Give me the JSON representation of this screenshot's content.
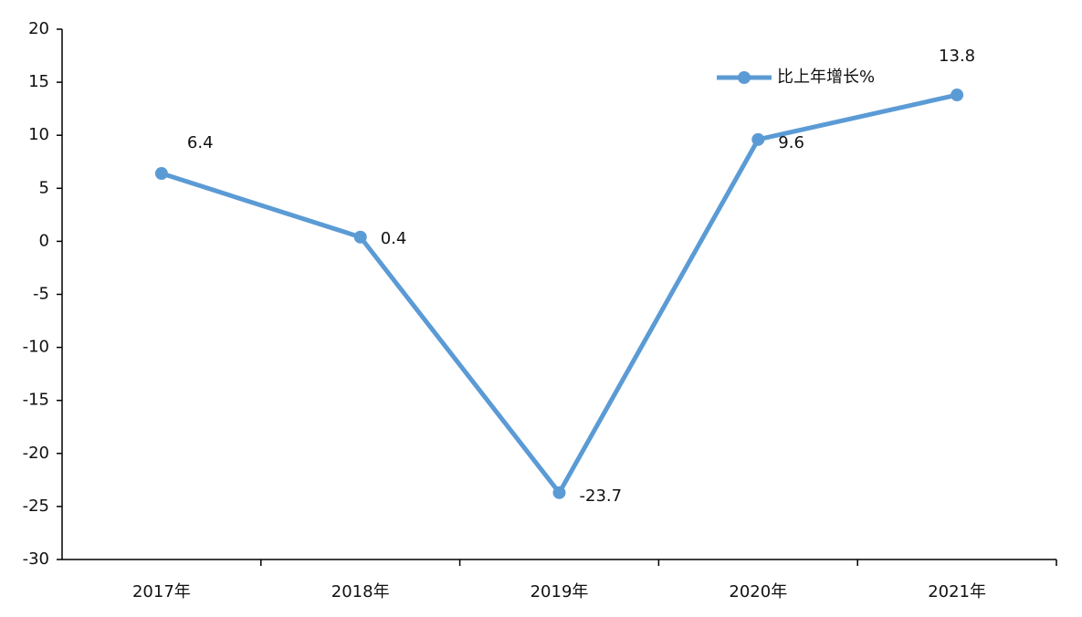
{
  "chart_data": {
    "type": "line",
    "categories": [
      "2017年",
      "2018年",
      "2019年",
      "2020年",
      "2021年"
    ],
    "series": [
      {
        "name": "比上年增长%",
        "color": "#5b9bd5",
        "values": [
          6.4,
          0.4,
          -23.7,
          9.6,
          13.8
        ]
      }
    ],
    "ylim": [
      -30,
      20
    ],
    "yticks": [
      -30,
      -25,
      -20,
      -15,
      -10,
      -5,
      0,
      5,
      10,
      15,
      20
    ],
    "grid": false,
    "legend": "top-right",
    "data_labels": true
  }
}
